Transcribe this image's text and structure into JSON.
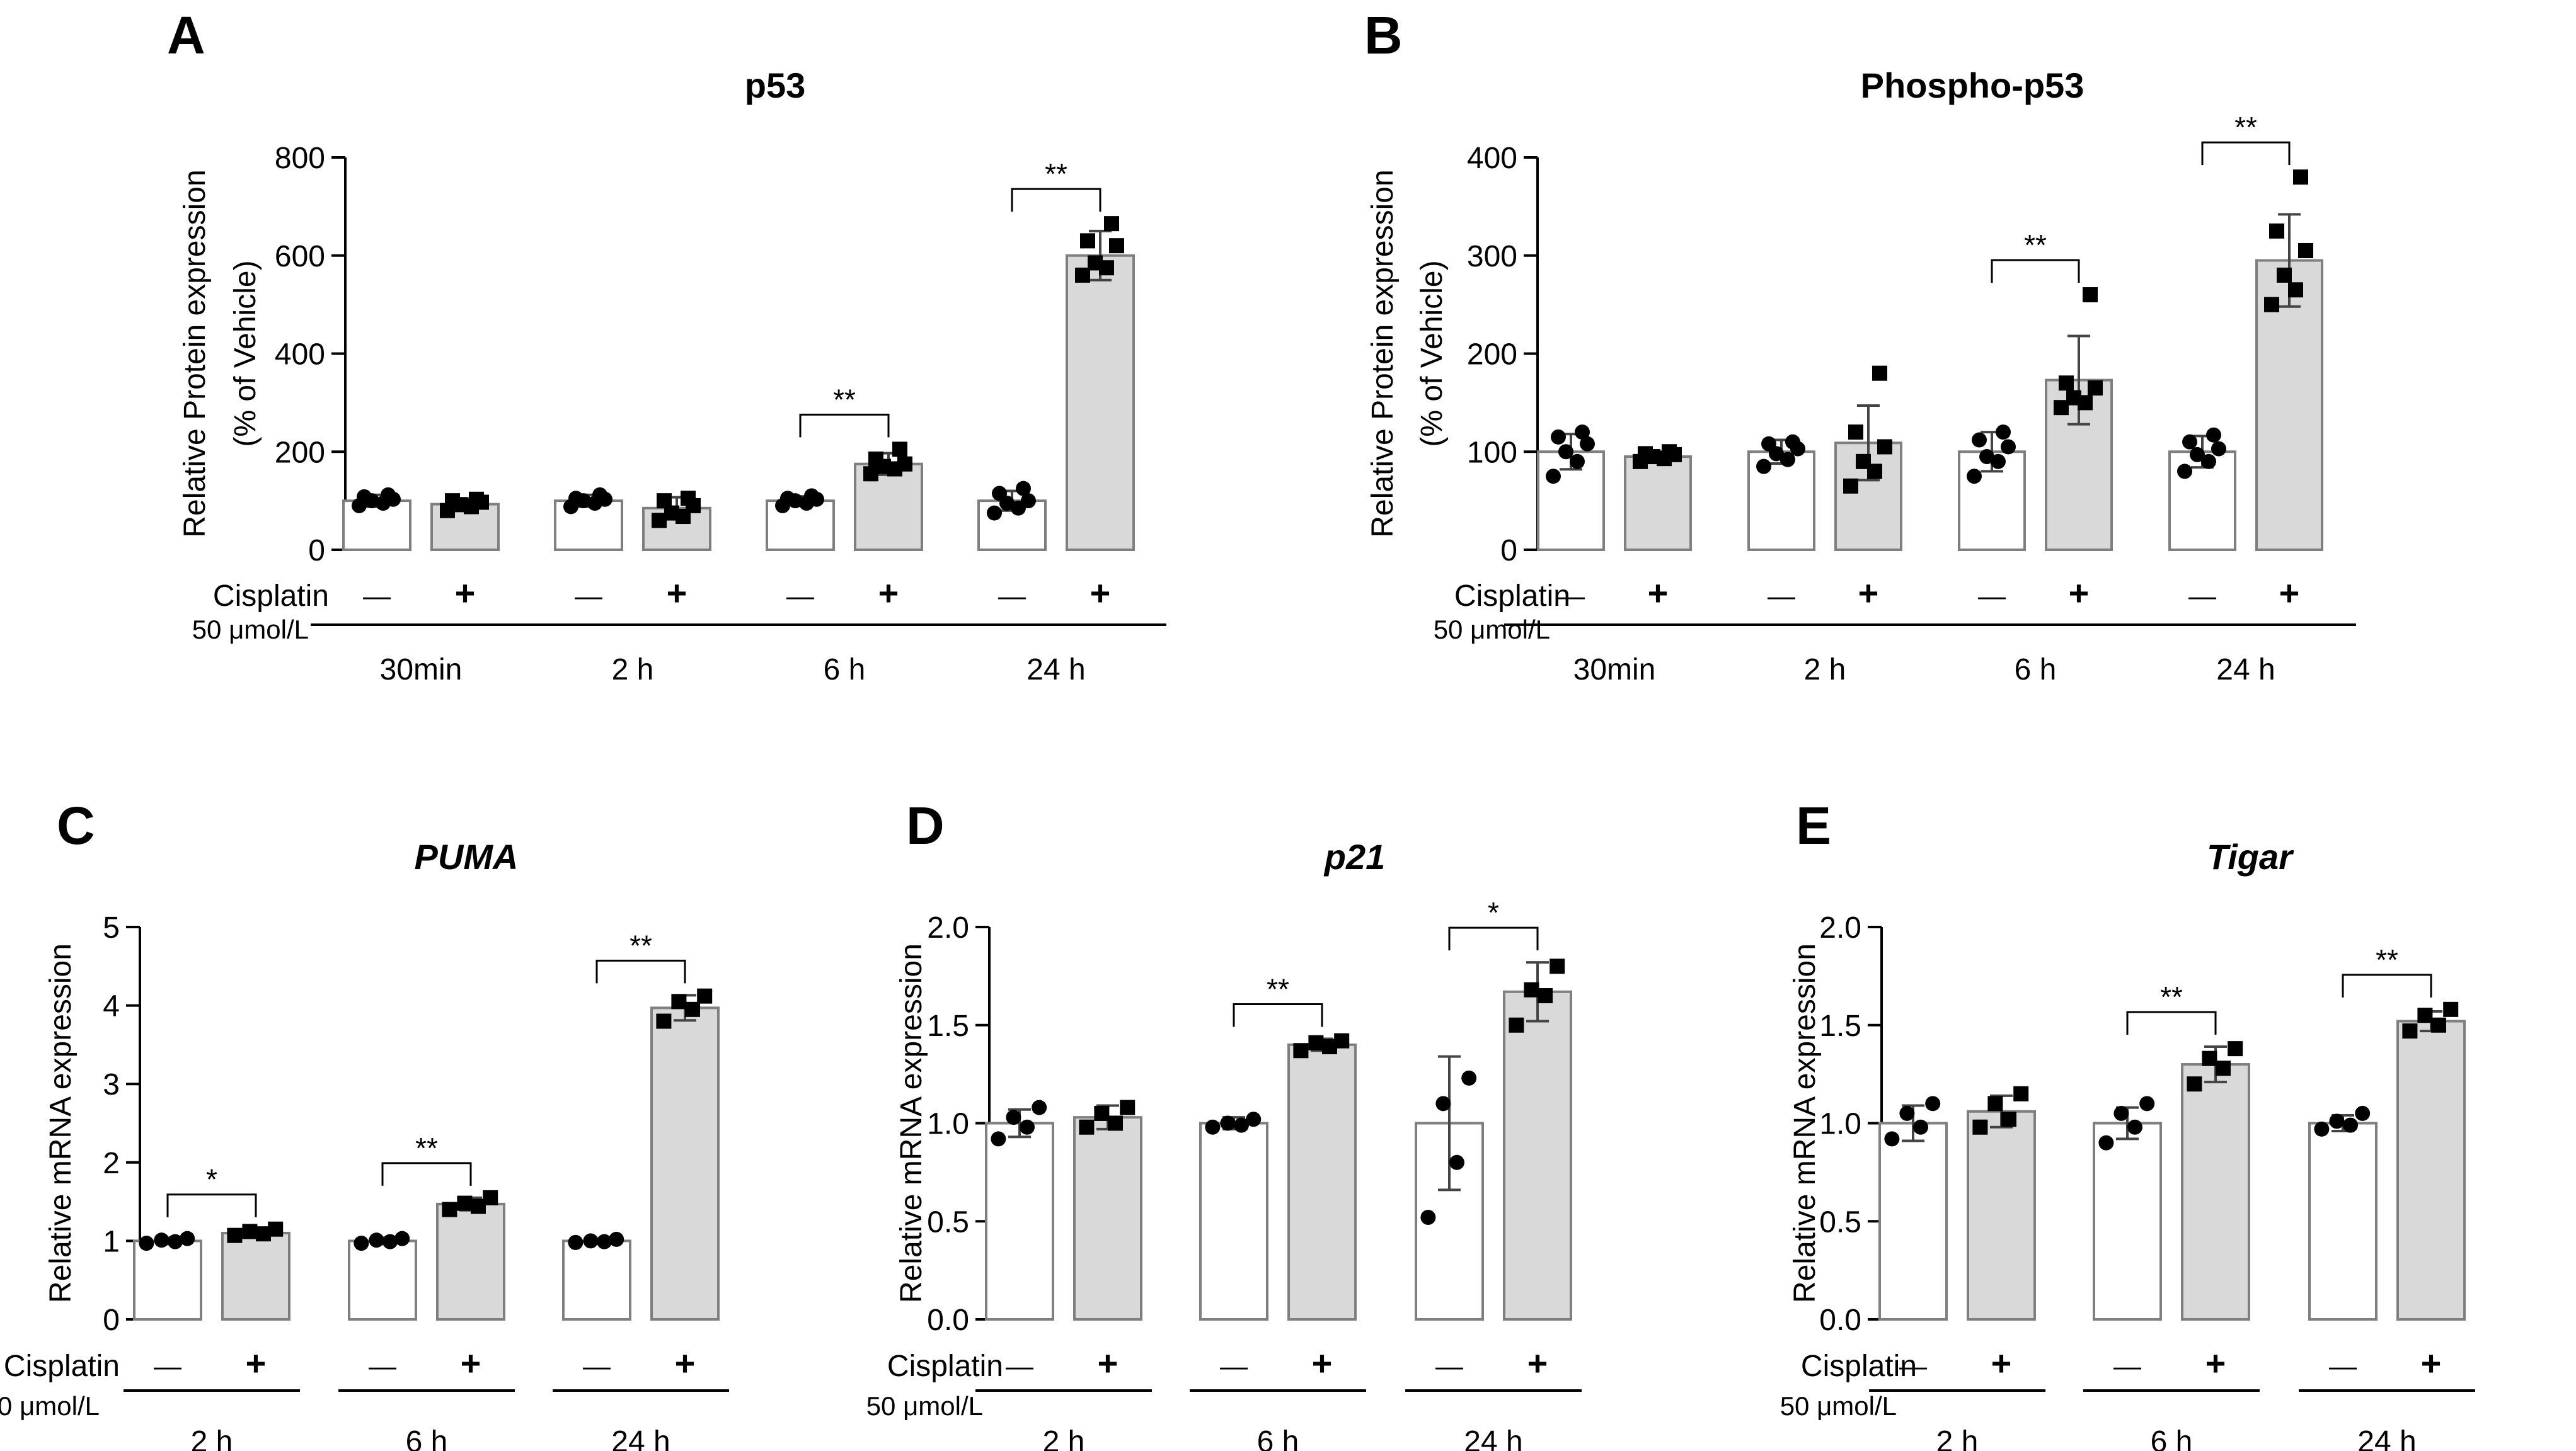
{
  "colors": {
    "control_fill": "#ffffff",
    "treated_fill": "#d9d9d9",
    "bar_stroke": "#7f7f7f",
    "ink": "#000000"
  },
  "legend": {
    "treatment": "Cisplatin",
    "dose": "50 μmol/L",
    "minus": "—",
    "plus": "+"
  },
  "chart_data": [
    {
      "panel": "A",
      "type": "bar",
      "title": "p53",
      "ylabel": "Relative Protein expression",
      "ylabel2": "(% of Vehicle)",
      "ylim": [
        0,
        800
      ],
      "yticks": [
        "0",
        "200",
        "400",
        "600",
        "800"
      ],
      "groups": [
        "30min",
        "2 h",
        "6 h",
        "24 h"
      ],
      "series": [
        {
          "name": "Vehicle",
          "values": [
            100,
            100,
            100,
            100
          ],
          "err": [
            12,
            12,
            9,
            20
          ]
        },
        {
          "name": "Cisplatin",
          "values": [
            93,
            85,
            175,
            600
          ],
          "err": [
            12,
            22,
            22,
            50
          ]
        }
      ],
      "points": [
        [
          [
            90,
            95,
            100,
            103,
            108,
            112
          ],
          [
            80,
            88,
            92,
            97,
            100,
            103
          ]
        ],
        [
          [
            88,
            95,
            100,
            103,
            105,
            112
          ],
          [
            60,
            68,
            75,
            90,
            100,
            105
          ]
        ],
        [
          [
            90,
            95,
            100,
            103,
            105,
            110
          ],
          [
            155,
            165,
            170,
            175,
            185,
            205
          ]
        ],
        [
          [
            75,
            85,
            95,
            100,
            115,
            125
          ],
          [
            560,
            575,
            585,
            620,
            630,
            665
          ]
        ]
      ],
      "sig": [
        {
          "group": 2,
          "label": "**"
        },
        {
          "group": 3,
          "label": "**"
        }
      ]
    },
    {
      "panel": "B",
      "type": "bar",
      "title": "Phospho-p53",
      "ylabel": "Relative Protein expression",
      "ylabel2": "(% of Vehicle)",
      "ylim": [
        0,
        400
      ],
      "yticks": [
        "0",
        "100",
        "200",
        "300",
        "400"
      ],
      "groups": [
        "30min",
        "2 h",
        "6 h",
        "24 h"
      ],
      "series": [
        {
          "name": "Vehicle",
          "values": [
            100,
            100,
            100,
            100
          ],
          "err": [
            18,
            12,
            20,
            16
          ]
        },
        {
          "name": "Cisplatin",
          "values": [
            95,
            109,
            173,
            295
          ],
          "err": [
            5,
            38,
            45,
            47
          ]
        }
      ],
      "points": [
        [
          [
            75,
            90,
            100,
            108,
            115,
            120
          ],
          [
            90,
            93,
            95,
            97,
            98,
            100
          ]
        ],
        [
          [
            85,
            92,
            98,
            103,
            108,
            110
          ],
          [
            65,
            80,
            90,
            105,
            120,
            180
          ]
        ],
        [
          [
            75,
            90,
            95,
            105,
            112,
            120
          ],
          [
            145,
            150,
            155,
            165,
            170,
            260
          ]
        ],
        [
          [
            80,
            90,
            97,
            103,
            110,
            117
          ],
          [
            250,
            265,
            280,
            305,
            325,
            380
          ]
        ]
      ],
      "sig": [
        {
          "group": 2,
          "label": "**"
        },
        {
          "group": 3,
          "label": "**"
        }
      ]
    },
    {
      "panel": "C",
      "type": "bar",
      "title": "PUMA",
      "ylabel": "Relative mRNA expression",
      "ylim": [
        0,
        5
      ],
      "yticks": [
        "0",
        "1",
        "2",
        "3",
        "4",
        "5"
      ],
      "groups": [
        "2 h",
        "6 h",
        "24 h"
      ],
      "series": [
        {
          "name": "Vehicle",
          "values": [
            1.0,
            1.0,
            1.0
          ],
          "err": [
            0.04,
            0.04,
            0.03
          ]
        },
        {
          "name": "Cisplatin",
          "values": [
            1.1,
            1.47,
            3.97
          ],
          "err": [
            0.05,
            0.08,
            0.16
          ]
        }
      ],
      "points": [
        [
          [
            0.97,
            0.99,
            1.01,
            1.03
          ],
          [
            1.07,
            1.09,
            1.12,
            1.15
          ]
        ],
        [
          [
            0.97,
            0.99,
            1.01,
            1.03
          ],
          [
            1.4,
            1.44,
            1.48,
            1.55
          ]
        ],
        [
          [
            0.98,
            0.99,
            1.0,
            1.02
          ],
          [
            3.8,
            3.95,
            4.05,
            4.12
          ]
        ]
      ],
      "sig": [
        {
          "group": 0,
          "label": "*"
        },
        {
          "group": 1,
          "label": "**"
        },
        {
          "group": 2,
          "label": "**"
        }
      ]
    },
    {
      "panel": "D",
      "type": "bar",
      "title": "p21",
      "ylabel": "Relative mRNA expression",
      "ylim": [
        0,
        2
      ],
      "yticks": [
        "0.0",
        "0.5",
        "1.0",
        "1.5",
        "2.0"
      ],
      "groups": [
        "2 h",
        "6 h",
        "24 h"
      ],
      "series": [
        {
          "name": "Vehicle",
          "values": [
            1.0,
            1.0,
            1.0
          ],
          "err": [
            0.07,
            0.03,
            0.34
          ]
        },
        {
          "name": "Cisplatin",
          "values": [
            1.03,
            1.4,
            1.67
          ],
          "err": [
            0.06,
            0.03,
            0.15
          ]
        }
      ],
      "points": [
        [
          [
            0.92,
            0.98,
            1.03,
            1.08
          ],
          [
            0.98,
            1.0,
            1.05,
            1.08
          ]
        ],
        [
          [
            0.98,
            0.99,
            1.0,
            1.02
          ],
          [
            1.37,
            1.39,
            1.41,
            1.42
          ]
        ],
        [
          [
            0.52,
            0.8,
            1.1,
            1.23
          ],
          [
            1.5,
            1.65,
            1.68,
            1.8
          ]
        ]
      ],
      "sig": [
        {
          "group": 1,
          "label": "**"
        },
        {
          "group": 2,
          "label": "*"
        }
      ]
    },
    {
      "panel": "E",
      "type": "bar",
      "title": "Tigar",
      "ylabel": "Relative mRNA expression",
      "ylim": [
        0,
        2
      ],
      "yticks": [
        "0.0",
        "0.5",
        "1.0",
        "1.5",
        "2.0"
      ],
      "groups": [
        "2 h",
        "6 h",
        "24 h"
      ],
      "series": [
        {
          "name": "Vehicle",
          "values": [
            1.0,
            1.0,
            1.0
          ],
          "err": [
            0.09,
            0.08,
            0.04
          ]
        },
        {
          "name": "Cisplatin",
          "values": [
            1.06,
            1.3,
            1.52
          ],
          "err": [
            0.08,
            0.09,
            0.05
          ]
        }
      ],
      "points": [
        [
          [
            0.92,
            0.98,
            1.05,
            1.1
          ],
          [
            0.98,
            1.02,
            1.1,
            1.15
          ]
        ],
        [
          [
            0.9,
            0.98,
            1.05,
            1.1
          ],
          [
            1.2,
            1.28,
            1.33,
            1.38
          ]
        ],
        [
          [
            0.97,
            0.99,
            1.01,
            1.05
          ],
          [
            1.47,
            1.5,
            1.55,
            1.58
          ]
        ]
      ],
      "sig": [
        {
          "group": 1,
          "label": "**"
        },
        {
          "group": 2,
          "label": "**"
        }
      ]
    }
  ]
}
